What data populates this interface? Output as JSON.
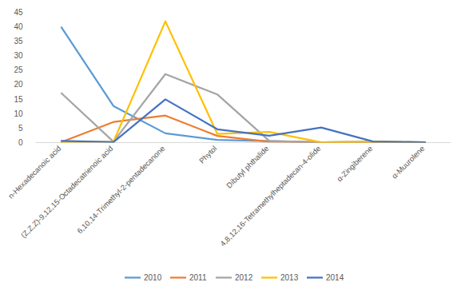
{
  "chart_data": {
    "type": "line",
    "categories": [
      "n-Hexadecanoic acid",
      "(Z,Z,Z)-9,12,15-Octadecatrienoic acid",
      "6,10,14-Trimethyl-2-pentadecanone",
      "Phytol",
      "Dibutyl phthalide",
      "4,8,12,16-Tetramethylheptadecan-4-olide",
      "α-Zingiberene",
      "α-Muurolene"
    ],
    "series": [
      {
        "name": "2010",
        "color": "#5b9bd5",
        "values": [
          39.7,
          12.6,
          3.2,
          0.9,
          0.5,
          0.1,
          0.3,
          0.1
        ]
      },
      {
        "name": "2011",
        "color": "#ed7d31",
        "values": [
          0.2,
          7.1,
          9.3,
          2.3,
          0.3,
          0.1,
          0.2,
          0.1
        ]
      },
      {
        "name": "2012",
        "color": "#a5a5a5",
        "values": [
          17,
          0.3,
          23.6,
          16.6,
          0.6,
          0.1,
          0.2,
          0.1
        ]
      },
      {
        "name": "2013",
        "color": "#ffc000",
        "values": [
          0.2,
          0.3,
          41.8,
          3,
          3.7,
          0.1,
          0.3,
          0.1
        ]
      },
      {
        "name": "2014",
        "color": "#4472c4",
        "values": [
          0.6,
          0.2,
          14.9,
          4.6,
          2.4,
          5.2,
          0.4,
          0.1
        ]
      }
    ],
    "ylim": [
      0,
      45
    ],
    "yticks": [
      0,
      5,
      10,
      15,
      20,
      25,
      30,
      35,
      40,
      45
    ],
    "grid": false,
    "legend": "bottom"
  }
}
